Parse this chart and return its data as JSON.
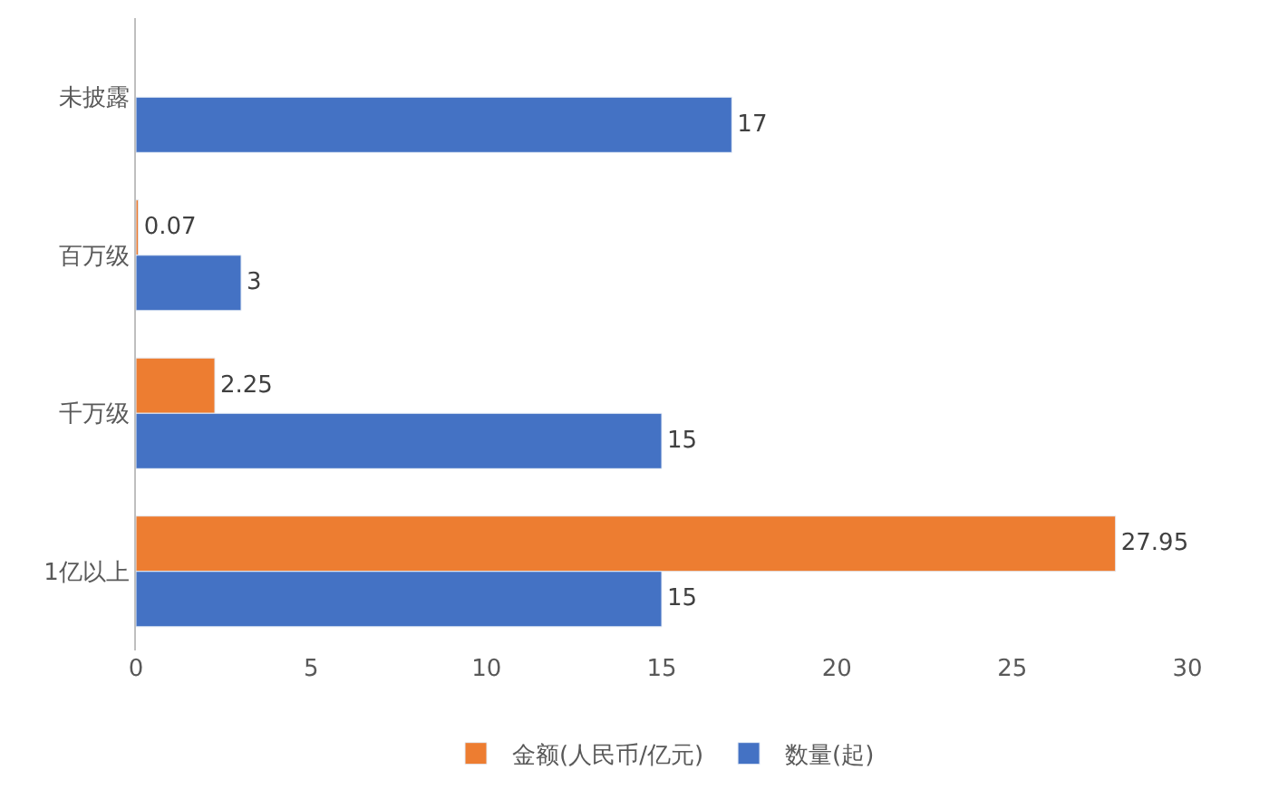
{
  "chart_data": {
    "type": "bar",
    "orientation": "horizontal",
    "categories": [
      "未披露",
      "百万级",
      "千万级",
      "1亿以上"
    ],
    "series": [
      {
        "name": "金额(人民币/亿元)",
        "color": "#ed7d31",
        "values": [
          null,
          0.07,
          2.25,
          27.95
        ]
      },
      {
        "name": "数量(起)",
        "color": "#4472c4",
        "values": [
          17,
          3,
          15,
          15
        ]
      }
    ],
    "xlim": [
      0,
      30
    ],
    "xticks": [
      0,
      5,
      10,
      15,
      20,
      25,
      30
    ],
    "legend": "bottom",
    "data_labels": true
  }
}
